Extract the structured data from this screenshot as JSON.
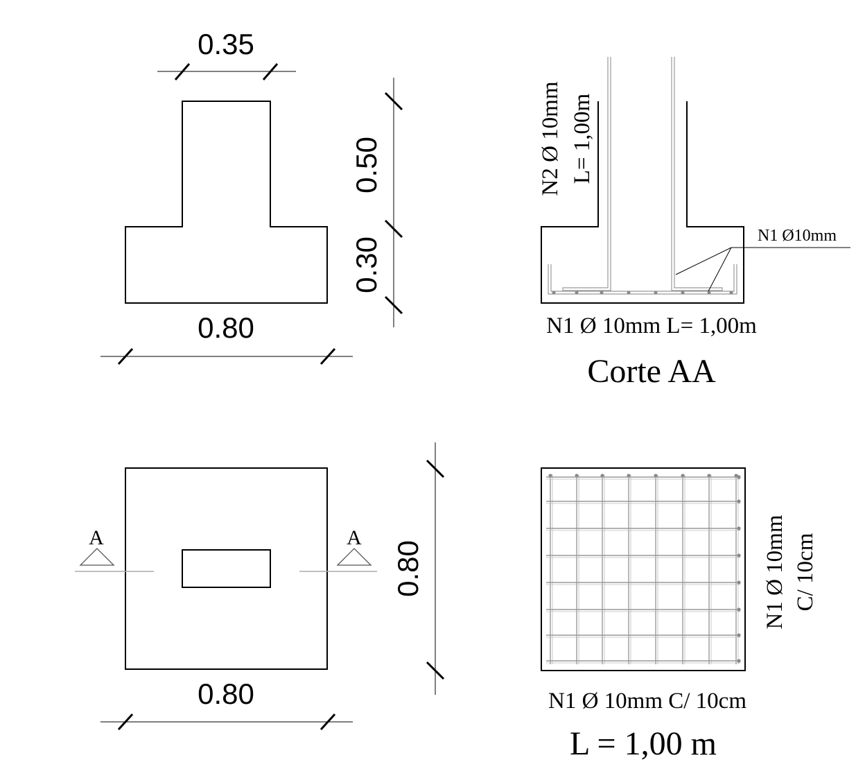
{
  "elevation": {
    "top_width": "0.35",
    "column_height": "0.50",
    "base_height": "0.30",
    "base_width": "0.80"
  },
  "section": {
    "n2_line1": "N2 Ø 10mm",
    "n2_line2": "L= 1,00m",
    "n1_callout": "N1 Ø10mm",
    "n1_bottom": "N1 Ø 10mm L= 1,00m",
    "title": "Corte AA"
  },
  "plan": {
    "cut_left": "A",
    "cut_right": "A",
    "width": "0.80",
    "depth": "0.80"
  },
  "mesh": {
    "side_line1": "N1 Ø 10mm",
    "side_line2": "C/ 10cm",
    "bottom_label": "N1 Ø 10mm C/ 10cm",
    "length": "L = 1,00 m"
  }
}
